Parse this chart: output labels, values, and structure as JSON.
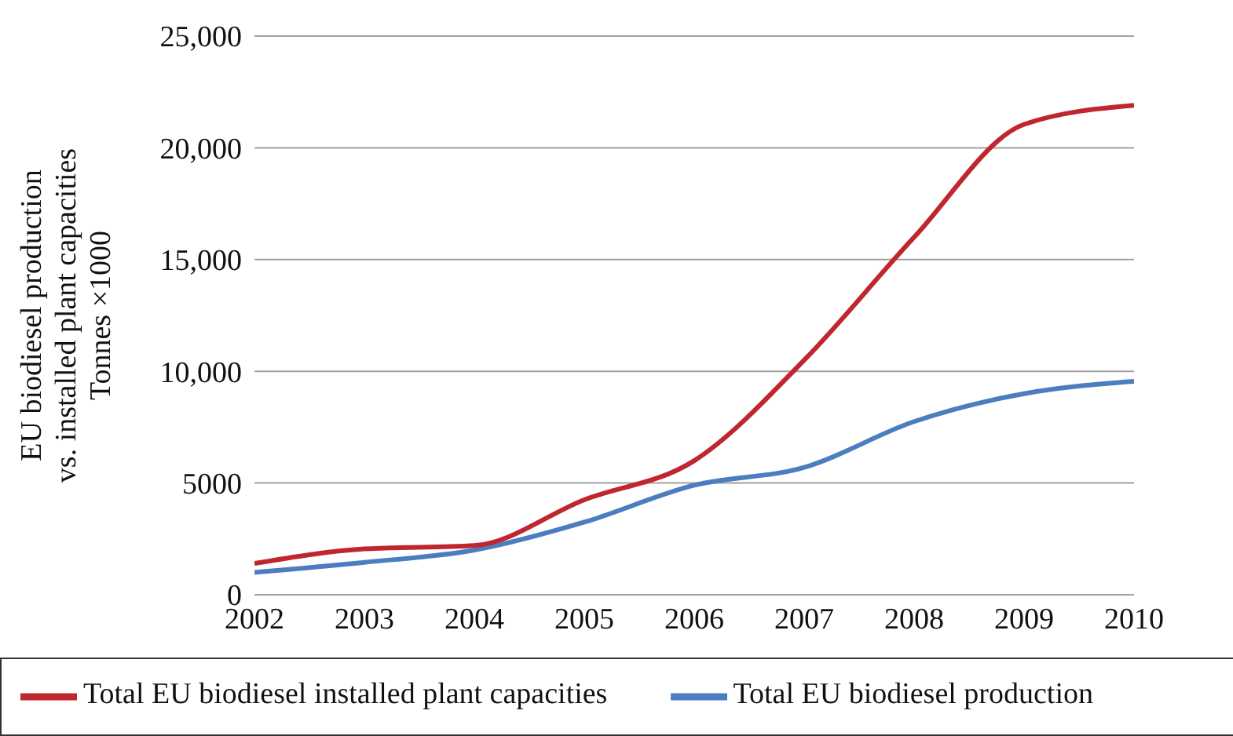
{
  "chart_data": {
    "type": "line",
    "ylabel": "EU biodiesel production\nvs. installed plant capacities\nTonnes ×1000",
    "x": [
      2002,
      2003,
      2004,
      2005,
      2006,
      2007,
      2008,
      2009,
      2010
    ],
    "series": [
      {
        "name": "Total EU biodiesel production",
        "color": "#4a7ebf",
        "values": [
          1000,
          1450,
          2000,
          3250,
          4900,
          5700,
          7750,
          9000,
          9550
        ]
      },
      {
        "name": "Total EU biodiesel installed plant capacities",
        "color": "#c0262d",
        "values": [
          1400,
          2050,
          2200,
          4250,
          6000,
          10500,
          16000,
          21050,
          21900
        ]
      }
    ],
    "xlim": [
      2002,
      2010
    ],
    "xticks": [
      2002,
      2003,
      2004,
      2005,
      2006,
      2007,
      2008,
      2009,
      2010
    ],
    "ylim": [
      0,
      25000
    ],
    "yticks": [
      0,
      5000,
      {
        "value": 10000,
        "label": "10,000"
      },
      {
        "value": 15000,
        "label": "15,000"
      },
      {
        "value": 20000,
        "label": "20,000"
      },
      {
        "value": 25000,
        "label": "25,000"
      }
    ],
    "grid": "y",
    "legend": "bottom",
    "marker": "none",
    "line_style": "solid"
  }
}
